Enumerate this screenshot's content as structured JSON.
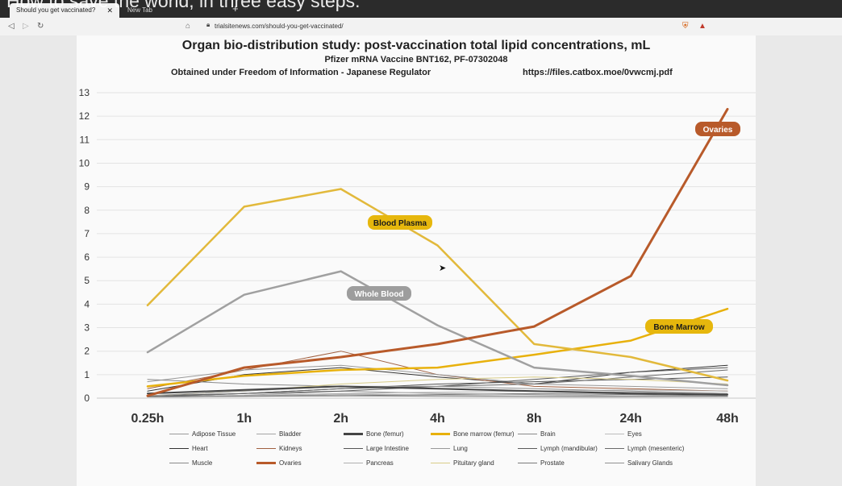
{
  "browser": {
    "overlay_text": "How to save the world, in three easy steps.",
    "tabs": [
      {
        "label": "Should you get vaccinated?",
        "active": true
      },
      {
        "label": "New Tab",
        "active": false
      }
    ],
    "new_tab_symbol": "+",
    "url": "trialsitenews.com/should-you-get-vaccinated/"
  },
  "chart_header": {
    "title": "Organ bio-distribution study: post-vaccination total lipid concentrations, mL",
    "subtitle": "Pfizer mRNA Vaccine BNT162, PF-07302048",
    "note": "Obtained under Freedom of Information - Japanese Regulator",
    "source": "https://files.catbox.moe/0vwcmj.pdf"
  },
  "chart_data": {
    "type": "line",
    "categories": [
      "0.25h",
      "1h",
      "2h",
      "4h",
      "8h",
      "24h",
      "48h"
    ],
    "ylim": [
      0,
      13
    ],
    "yticks": [
      0,
      1,
      2,
      3,
      4,
      5,
      6,
      7,
      8,
      9,
      10,
      11,
      12,
      13
    ],
    "grid": true,
    "legend_position": "bottom",
    "series": [
      {
        "name": "Adipose Tissue",
        "color": "#9a9a9a",
        "width": 1,
        "values": [
          0.06,
          0.12,
          0.3,
          0.2,
          0.15,
          0.1,
          0.08
        ]
      },
      {
        "name": "Bladder",
        "color": "#a5a5a5",
        "width": 1,
        "values": [
          0.05,
          0.08,
          0.15,
          0.12,
          0.1,
          0.08,
          0.06
        ]
      },
      {
        "name": "Bone (femur)",
        "color": "#444444",
        "width": 2,
        "values": [
          0.2,
          0.35,
          0.5,
          0.4,
          0.3,
          0.2,
          0.15
        ]
      },
      {
        "name": "Bone marrow (femur)",
        "color": "#e8b10c",
        "width": 2.5,
        "values": [
          0.5,
          0.95,
          1.2,
          1.3,
          1.85,
          2.45,
          3.8
        ]
      },
      {
        "name": "Brain",
        "color": "#888888",
        "width": 1,
        "values": [
          0.05,
          0.1,
          0.1,
          0.08,
          0.06,
          0.05,
          0.05
        ]
      },
      {
        "name": "Eyes",
        "color": "#bbbbbb",
        "width": 1,
        "values": [
          0.05,
          0.1,
          0.2,
          0.12,
          0.1,
          0.08,
          0.05
        ]
      },
      {
        "name": "Heart",
        "color": "#333333",
        "width": 1,
        "values": [
          0.3,
          1.0,
          1.3,
          0.9,
          0.6,
          1.1,
          1.4
        ]
      },
      {
        "name": "Kidneys",
        "color": "#a06040",
        "width": 1,
        "values": [
          0.4,
          1.2,
          2.0,
          1.0,
          0.5,
          0.4,
          0.3
        ]
      },
      {
        "name": "Large Intestine",
        "color": "#555555",
        "width": 1,
        "values": [
          0.05,
          0.2,
          0.4,
          0.6,
          0.7,
          0.8,
          0.9
        ]
      },
      {
        "name": "Lung",
        "color": "#999999",
        "width": 1,
        "values": [
          0.7,
          1.2,
          1.4,
          1.0,
          0.6,
          0.5,
          0.4
        ]
      },
      {
        "name": "Lymph (mandibular)",
        "color": "#5a5a5a",
        "width": 1,
        "values": [
          0.1,
          0.2,
          0.3,
          0.5,
          0.8,
          1.1,
          1.3
        ]
      },
      {
        "name": "Lymph (mesenteric)",
        "color": "#6a6a6a",
        "width": 1,
        "values": [
          0.05,
          0.2,
          0.4,
          0.5,
          0.6,
          0.9,
          1.2
        ]
      },
      {
        "name": "Muscle",
        "color": "#8a8a8a",
        "width": 1,
        "values": [
          0.8,
          0.6,
          0.5,
          0.4,
          0.3,
          0.25,
          0.2
        ]
      },
      {
        "name": "Ovaries",
        "color": "#b85a2a",
        "width": 3,
        "values": [
          0.1,
          1.3,
          1.75,
          2.3,
          3.05,
          5.2,
          12.3
        ]
      },
      {
        "name": "Pancreas",
        "color": "#b0b0b0",
        "width": 1,
        "values": [
          0.05,
          0.1,
          0.2,
          0.25,
          0.3,
          0.35,
          0.3
        ]
      },
      {
        "name": "Pituitary gland",
        "color": "#d8cc88",
        "width": 1,
        "values": [
          0.1,
          0.3,
          0.6,
          0.8,
          0.9,
          0.8,
          0.6
        ]
      },
      {
        "name": "Prostate",
        "color": "#7a7a7a",
        "width": 1,
        "values": [
          0.05,
          0.08,
          0.1,
          0.15,
          0.2,
          0.15,
          0.1
        ]
      },
      {
        "name": "Salivary Glands",
        "color": "#909090",
        "width": 1,
        "values": [
          0.1,
          0.3,
          0.5,
          0.5,
          0.4,
          0.3,
          0.2
        ]
      },
      {
        "name": "Whole Blood",
        "color": "#a0a0a0",
        "width": 2.5,
        "values": [
          1.95,
          4.4,
          5.4,
          3.1,
          1.3,
          0.95,
          0.55
        ],
        "in_legend": false
      },
      {
        "name": "Blood Plasma",
        "color": "#e2b93b",
        "width": 2.5,
        "values": [
          3.95,
          8.15,
          8.9,
          6.5,
          2.3,
          1.75,
          0.75
        ],
        "in_legend": false
      }
    ],
    "annotations": [
      {
        "text": "Ovaries",
        "series": "Ovaries",
        "bg": "#b85a2a",
        "fg": "#ffffff"
      },
      {
        "text": "Blood Plasma",
        "series": "Blood Plasma",
        "bg": "#e6b70d",
        "fg": "#1a1a1a"
      },
      {
        "text": "Whole Blood",
        "series": "Whole Blood",
        "bg": "#9d9d9d",
        "fg": "#ffffff"
      },
      {
        "text": "Bone Marrow",
        "series": "Bone marrow (femur)",
        "bg": "#e6b70d",
        "fg": "#1a1a1a"
      }
    ]
  }
}
